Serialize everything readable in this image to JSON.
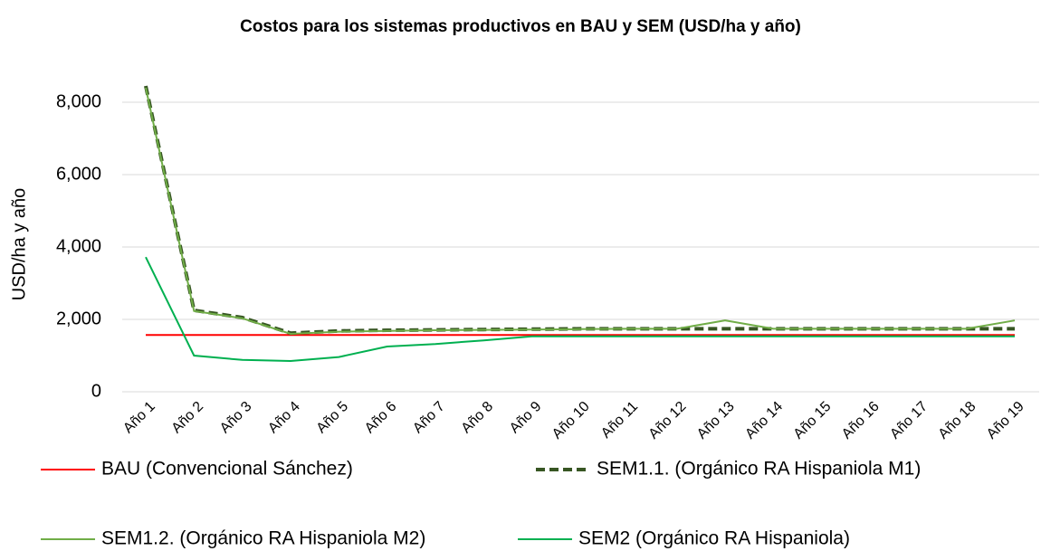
{
  "chart_data": {
    "type": "line",
    "title": "Costos para los sistemas productivos en BAU y SEM (USD/ha y año)",
    "y_label": "USD/ha y año",
    "categories": [
      "Año 1",
      "Año 2",
      "Año 3",
      "Año 4",
      "Año 5",
      "Año 6",
      "Año 7",
      "Año 8",
      "Año 9",
      "Año 10",
      "Año 11",
      "Año 12",
      "Año 13",
      "Año 14",
      "Año 15",
      "Año 16",
      "Año 17",
      "Año 18",
      "Año 19"
    ],
    "series": [
      {
        "name": "BAU (Convencional Sánchez)",
        "color": "#ff0000",
        "dashed": false,
        "values": [
          1570,
          1570,
          1570,
          1570,
          1570,
          1570,
          1570,
          1570,
          1570,
          1570,
          1570,
          1570,
          1570,
          1570,
          1570,
          1570,
          1570,
          1570,
          1570
        ]
      },
      {
        "name": "SEM1.1. (Orgánico RA Hispaniola M1)",
        "color": "#375623",
        "dashed": true,
        "values": [
          8450,
          2250,
          2050,
          1620,
          1680,
          1700,
          1710,
          1720,
          1730,
          1740,
          1740,
          1740,
          1740,
          1740,
          1740,
          1740,
          1740,
          1740,
          1740
        ]
      },
      {
        "name": "SEM1.2. (Orgánico RA Hispaniola M2)",
        "color": "#70ad47",
        "dashed": false,
        "values": [
          8400,
          2230,
          2030,
          1600,
          1660,
          1680,
          1700,
          1710,
          1720,
          1730,
          1740,
          1740,
          1970,
          1740,
          1740,
          1740,
          1740,
          1740,
          1970
        ]
      },
      {
        "name": "SEM2 (Orgánico RA Hispaniola)",
        "color": "#00b050",
        "dashed": false,
        "values": [
          3720,
          1000,
          880,
          850,
          960,
          1250,
          1320,
          1420,
          1530,
          1530,
          1530,
          1530,
          1530,
          1530,
          1530,
          1530,
          1530,
          1530,
          1530
        ]
      }
    ],
    "ylim": [
      0,
      8000
    ],
    "yticks": [
      0,
      {
        "value": 2000,
        "label": "2,000"
      },
      {
        "value": 4000,
        "label": "4,000"
      },
      {
        "value": 6000,
        "label": "6,000"
      },
      {
        "value": 8000,
        "label": "8,000"
      }
    ],
    "grid": true
  }
}
